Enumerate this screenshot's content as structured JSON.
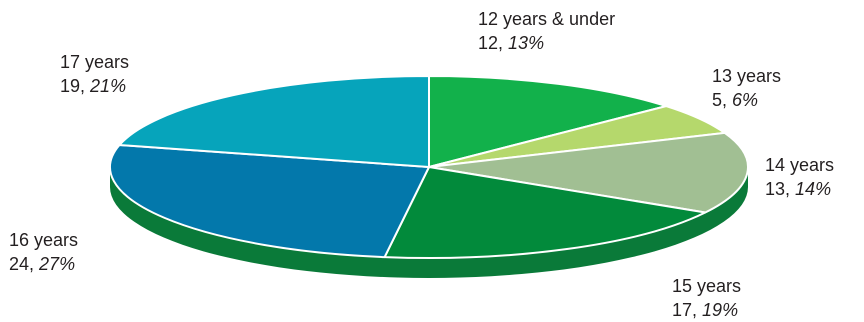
{
  "chart_data": {
    "type": "pie",
    "title": "",
    "legend": "none",
    "slices": [
      {
        "name": "12 years & under",
        "value": 12,
        "percent": "13%",
        "color": "#12b14b"
      },
      {
        "name": "13 years",
        "value": 5,
        "percent": "6%",
        "color": "#b5d86c"
      },
      {
        "name": "14 years",
        "value": 13,
        "percent": "14%",
        "color": "#a1bf93"
      },
      {
        "name": "15 years",
        "value": 17,
        "percent": "19%",
        "color": "#028a3b"
      },
      {
        "name": "16 years",
        "value": 24,
        "percent": "27%",
        "color": "#0378ab"
      },
      {
        "name": "17 years",
        "value": 19,
        "percent": "21%",
        "color": "#06a4bb"
      }
    ],
    "side_color": "#0a7a39"
  }
}
